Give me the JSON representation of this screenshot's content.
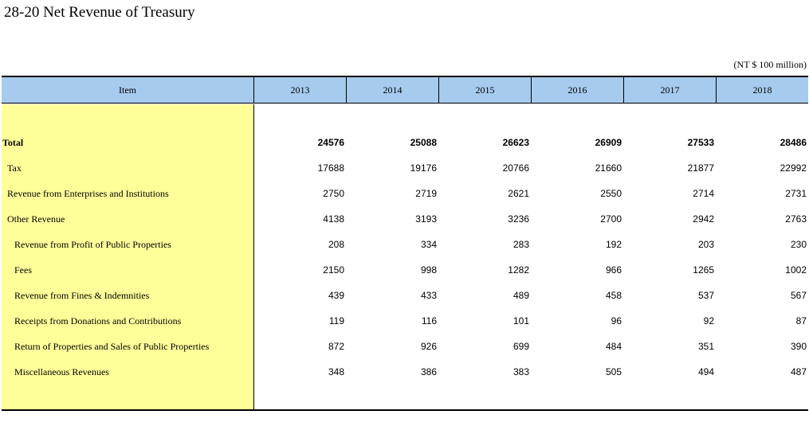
{
  "title": "28-20  Net Revenue of Treasury",
  "unit": "(NT $ 100 million)",
  "header": {
    "item": "Item",
    "years": [
      "2013",
      "2014",
      "2015",
      "2016",
      "2017",
      "2018"
    ]
  },
  "rows": [
    {
      "label": "Total",
      "level": 0,
      "bold": true,
      "values": [
        "24576",
        "25088",
        "26623",
        "26909",
        "27533",
        "28486"
      ]
    },
    {
      "label": "Tax",
      "level": 1,
      "bold": false,
      "values": [
        "17688",
        "19176",
        "20766",
        "21660",
        "21877",
        "22992"
      ]
    },
    {
      "label": "Revenue from Enterprises and Institutions",
      "level": 1,
      "bold": false,
      "values": [
        "2750",
        "2719",
        "2621",
        "2550",
        "2714",
        "2731"
      ]
    },
    {
      "label": "Other Revenue",
      "level": 1,
      "bold": false,
      "values": [
        "4138",
        "3193",
        "3236",
        "2700",
        "2942",
        "2763"
      ]
    },
    {
      "label": "Revenue from Profit of Public Properties",
      "level": 2,
      "bold": false,
      "values": [
        "208",
        "334",
        "283",
        "192",
        "203",
        "230"
      ]
    },
    {
      "label": "Fees",
      "level": 2,
      "bold": false,
      "values": [
        "2150",
        "998",
        "1282",
        "966",
        "1265",
        "1002"
      ]
    },
    {
      "label": "Revenue from Fines & Indemnities",
      "level": 2,
      "bold": false,
      "values": [
        "439",
        "433",
        "489",
        "458",
        "537",
        "567"
      ]
    },
    {
      "label": "Receipts from Donations and Contributions",
      "level": 2,
      "bold": false,
      "values": [
        "119",
        "116",
        "101",
        "96",
        "92",
        "87"
      ]
    },
    {
      "label": "Return of Properties and Sales of Public Properties",
      "level": 2,
      "bold": false,
      "values": [
        "872",
        "926",
        "699",
        "484",
        "351",
        "390"
      ]
    },
    {
      "label": "Miscellaneous Revenues",
      "level": 2,
      "bold": false,
      "values": [
        "348",
        "386",
        "383",
        "505",
        "494",
        "487"
      ]
    }
  ]
}
